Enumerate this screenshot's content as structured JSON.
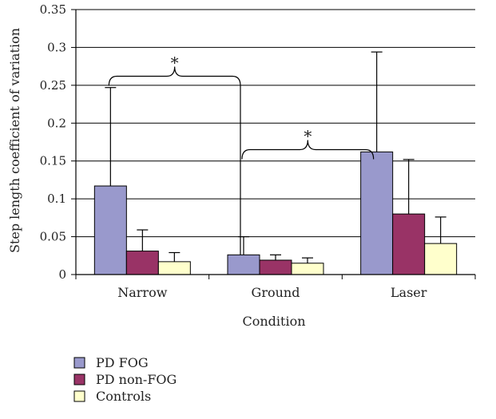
{
  "chart_data": {
    "type": "bar",
    "title": "",
    "xlabel": "Condition",
    "ylabel": "Step length coefficient of variation",
    "categories": [
      "Narrow",
      "Ground",
      "Laser"
    ],
    "ylim": [
      0,
      0.35
    ],
    "yticks": [
      "0",
      "0.05",
      "0.1",
      "0.15",
      "0.2",
      "0.25",
      "0.3",
      "0.35"
    ],
    "grid": true,
    "legend_position": "bottom-left",
    "error_bars": "upper",
    "series": [
      {
        "name": "PD FOG",
        "color": "#9999cc",
        "values": [
          0.117,
          0.026,
          0.162
        ],
        "error": [
          0.13,
          0.024,
          0.132
        ]
      },
      {
        "name": "PD non-FOG",
        "color": "#993366",
        "values": [
          0.031,
          0.019,
          0.08
        ],
        "error": [
          0.028,
          0.007,
          0.072
        ]
      },
      {
        "name": "Controls",
        "color": "#ffffcc",
        "values": [
          0.017,
          0.015,
          0.041
        ],
        "error": [
          0.012,
          0.007,
          0.035
        ]
      }
    ],
    "annotations": [
      {
        "label": "*",
        "from_category": "Narrow",
        "to_category": "Ground",
        "y": 0.262
      },
      {
        "label": "*",
        "from_category": "Ground",
        "to_category": "Laser",
        "y": 0.165
      }
    ]
  }
}
